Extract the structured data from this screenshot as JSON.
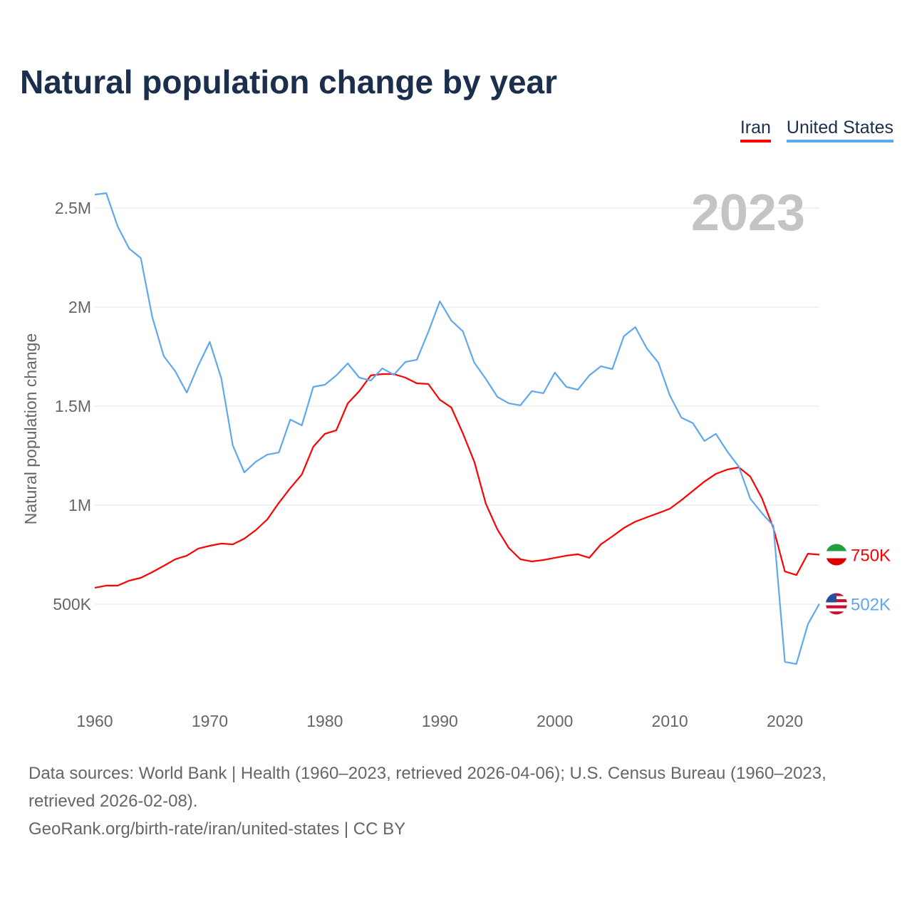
{
  "title": "Natural population change by year",
  "footer": {
    "sources": "Data sources: World Bank | Health (1960–2023, retrieved 2026-04-06); U.S. Census Bureau (1960–2023, retrieved 2026-02-08).",
    "link": "GeoRank.org/birth-rate/iran/united-states | CC BY"
  },
  "chart_data": {
    "type": "line",
    "title": "Natural population change by year",
    "xlabel": "",
    "ylabel": "Natural population change",
    "year_overlay": "2023",
    "xlim": [
      1960,
      2023
    ],
    "ylim": [
      0,
      2700000
    ],
    "x_ticks": [
      1960,
      1970,
      1980,
      1990,
      2000,
      2010,
      2020
    ],
    "y_ticks": [
      {
        "v": 500000,
        "label": "500K"
      },
      {
        "v": 1000000,
        "label": "1M"
      },
      {
        "v": 1500000,
        "label": "1.5M"
      },
      {
        "v": 2000000,
        "label": "2M"
      },
      {
        "v": 2500000,
        "label": "2.5M"
      }
    ],
    "grid": true,
    "legend_position": "top-right",
    "x_start": 1960,
    "series": [
      {
        "name": "Iran",
        "color": "#ff0000",
        "end_label": "750K",
        "flag": "iran-flag",
        "values": [
          583,
          594,
          594,
          619,
          633,
          662,
          694,
          727,
          745,
          781,
          795,
          806,
          802,
          831,
          874,
          928,
          1011,
          1086,
          1155,
          1295,
          1360,
          1378,
          1514,
          1576,
          1655,
          1662,
          1662,
          1644,
          1615,
          1612,
          1532,
          1493,
          1363,
          1219,
          1007,
          878,
          784,
          727,
          716,
          723,
          734,
          745,
          752,
          734,
          802,
          842,
          885,
          917,
          939,
          960,
          982,
          1025,
          1072,
          1119,
          1158,
          1180,
          1191,
          1144,
          1036,
          885,
          665,
          647,
          755,
          750
        ]
      },
      {
        "name": "United States",
        "color": "#5fa8ee",
        "end_label": "502K",
        "flag": "us-flag",
        "values": [
          2568,
          2575,
          2406,
          2295,
          2248,
          1950,
          1752,
          1676,
          1568,
          1705,
          1824,
          1640,
          1302,
          1165,
          1219,
          1255,
          1266,
          1432,
          1403,
          1597,
          1608,
          1655,
          1716,
          1644,
          1629,
          1691,
          1658,
          1723,
          1734,
          1874,
          2029,
          1932,
          1878,
          1719,
          1637,
          1547,
          1514,
          1504,
          1576,
          1565,
          1669,
          1597,
          1583,
          1655,
          1701,
          1687,
          1853,
          1899,
          1791,
          1719,
          1554,
          1442,
          1414,
          1324,
          1360,
          1270,
          1194,
          1032,
          960,
          896,
          209,
          198,
          399,
          502
        ]
      }
    ],
    "value_unit": "thousands"
  }
}
